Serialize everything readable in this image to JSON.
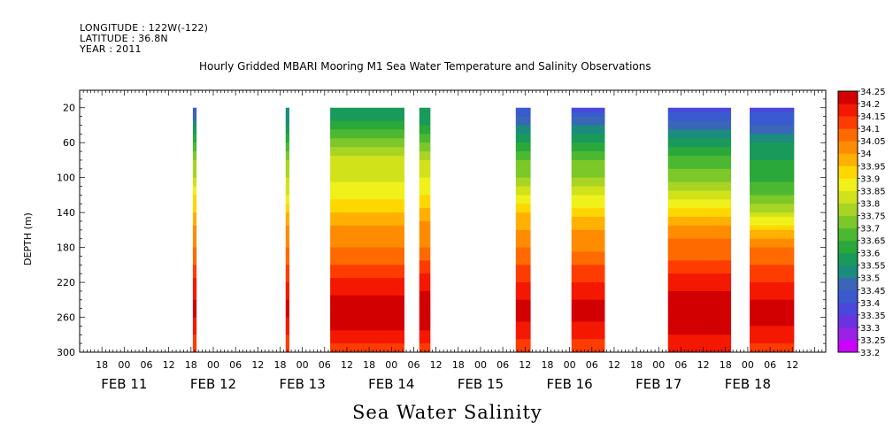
{
  "header": {
    "longitude": "LONGITUDE : 122W(-122)",
    "latitude": "LATITUDE : 36.8N",
    "year": "YEAR : 2011"
  },
  "chart_data": {
    "type": "heatmap",
    "title": "Hourly Gridded MBARI Mooring M1 Sea Water Temperature and Salinity Observations",
    "variable": "Sea Water Salinity",
    "ylabel": "DEPTH (m)",
    "xlabel": "",
    "ylim": [
      300,
      0
    ],
    "x_range_hours": [
      -12,
      189
    ],
    "x_units": "hours from FEB 11 00:00, 2011",
    "yticks": [
      20,
      60,
      100,
      140,
      180,
      220,
      260,
      300
    ],
    "xticks_hours": [
      "18",
      "00",
      "06",
      "12",
      "18",
      "00",
      "06",
      "12",
      "18",
      "00",
      "06",
      "12",
      "18",
      "00",
      "06",
      "12",
      "18",
      "00",
      "06",
      "12",
      "18",
      "00",
      "06",
      "12",
      "18",
      "00",
      "06",
      "12",
      "18",
      "00",
      "06",
      "12"
    ],
    "xtick_start_hour": -6,
    "xtick_step_hours": 6,
    "day_labels": [
      {
        "label": "FEB 11",
        "hour": 0
      },
      {
        "label": "FEB 12",
        "hour": 24
      },
      {
        "label": "FEB 13",
        "hour": 48
      },
      {
        "label": "FEB 14",
        "hour": 72
      },
      {
        "label": "FEB 15",
        "hour": 96
      },
      {
        "label": "FEB 16",
        "hour": 120
      },
      {
        "label": "FEB 17",
        "hour": 144
      },
      {
        "label": "FEB 18",
        "hour": 168
      }
    ],
    "colorbar": {
      "levels": [
        33.2,
        33.25,
        33.3,
        33.35,
        33.4,
        33.45,
        33.5,
        33.55,
        33.6,
        33.65,
        33.7,
        33.75,
        33.8,
        33.85,
        33.9,
        33.95,
        34,
        34.05,
        34.1,
        34.15,
        34.2,
        34.25
      ],
      "labels": [
        "33.2",
        "33.25",
        "33.3",
        "33.35",
        "33.4",
        "33.45",
        "33.5",
        "33.55",
        "33.6",
        "33.65",
        "33.7",
        "33.75",
        "33.8",
        "33.85",
        "33.9",
        "33.95",
        "34",
        "34.05",
        "34.1",
        "34.15",
        "34.2",
        "34.25"
      ],
      "colors": [
        "#cc00ff",
        "#9a22e6",
        "#6a32e0",
        "#4a48dc",
        "#3a5ad0",
        "#3a66b8",
        "#1c8c7e",
        "#1a9a5a",
        "#2aa83a",
        "#4cb832",
        "#7cc828",
        "#a8d424",
        "#d0e21a",
        "#f0f01a",
        "#ffd700",
        "#ffb000",
        "#ff8c00",
        "#ff6a00",
        "#ff3c00",
        "#f51800",
        "#d20000",
        "#a00000"
      ]
    },
    "profile_depths": [
      20,
      40,
      60,
      80,
      100,
      120,
      140,
      160,
      180,
      200,
      220,
      240,
      260,
      280,
      300
    ],
    "segments": [
      {
        "start": 18.5,
        "end": 19.5,
        "profile": [
          33.4,
          33.55,
          33.65,
          33.75,
          33.8,
          33.9,
          33.95,
          34.02,
          34.05,
          34.1,
          34.16,
          34.2,
          34.2,
          34.15,
          34.1
        ]
      },
      {
        "start": 43.5,
        "end": 44.5,
        "profile": [
          33.5,
          33.55,
          33.65,
          33.75,
          33.8,
          33.85,
          33.95,
          34.02,
          34.05,
          34.1,
          34.15,
          34.2,
          34.2,
          34.15,
          34.1
        ]
      },
      {
        "start": 55.5,
        "end": 75.5,
        "profile": [
          33.55,
          33.62,
          33.72,
          33.82,
          33.84,
          33.88,
          33.95,
          34.02,
          34.05,
          34.1,
          34.16,
          34.22,
          34.24,
          34.18,
          34.12
        ]
      },
      {
        "start": 79.5,
        "end": 82.5,
        "profile": [
          33.55,
          33.6,
          33.7,
          33.8,
          33.85,
          33.9,
          33.98,
          34.02,
          34.05,
          34.12,
          34.18,
          34.22,
          34.24,
          34.18,
          34.12
        ]
      },
      {
        "start": 105.5,
        "end": 109.5,
        "profile": [
          33.4,
          33.5,
          33.6,
          33.7,
          33.75,
          33.85,
          33.95,
          34.0,
          34.05,
          34.1,
          34.15,
          34.2,
          34.22,
          34.16,
          34.1
        ]
      },
      {
        "start": 120.5,
        "end": 129.5,
        "profile": [
          33.38,
          33.5,
          33.6,
          33.7,
          33.75,
          33.85,
          33.92,
          34.0,
          34.04,
          34.1,
          34.15,
          34.2,
          34.22,
          34.16,
          34.1
        ]
      },
      {
        "start": 146.5,
        "end": 163.5,
        "profile": [
          33.38,
          33.48,
          33.58,
          33.68,
          33.72,
          33.82,
          33.92,
          34.04,
          34.06,
          34.12,
          34.18,
          34.22,
          34.24,
          34.2,
          34.15
        ]
      },
      {
        "start": 168.5,
        "end": 180.5,
        "profile": [
          33.38,
          33.45,
          33.55,
          33.6,
          33.62,
          33.7,
          33.8,
          33.95,
          34.05,
          34.1,
          34.15,
          34.2,
          34.22,
          34.18,
          34.12
        ]
      }
    ]
  }
}
